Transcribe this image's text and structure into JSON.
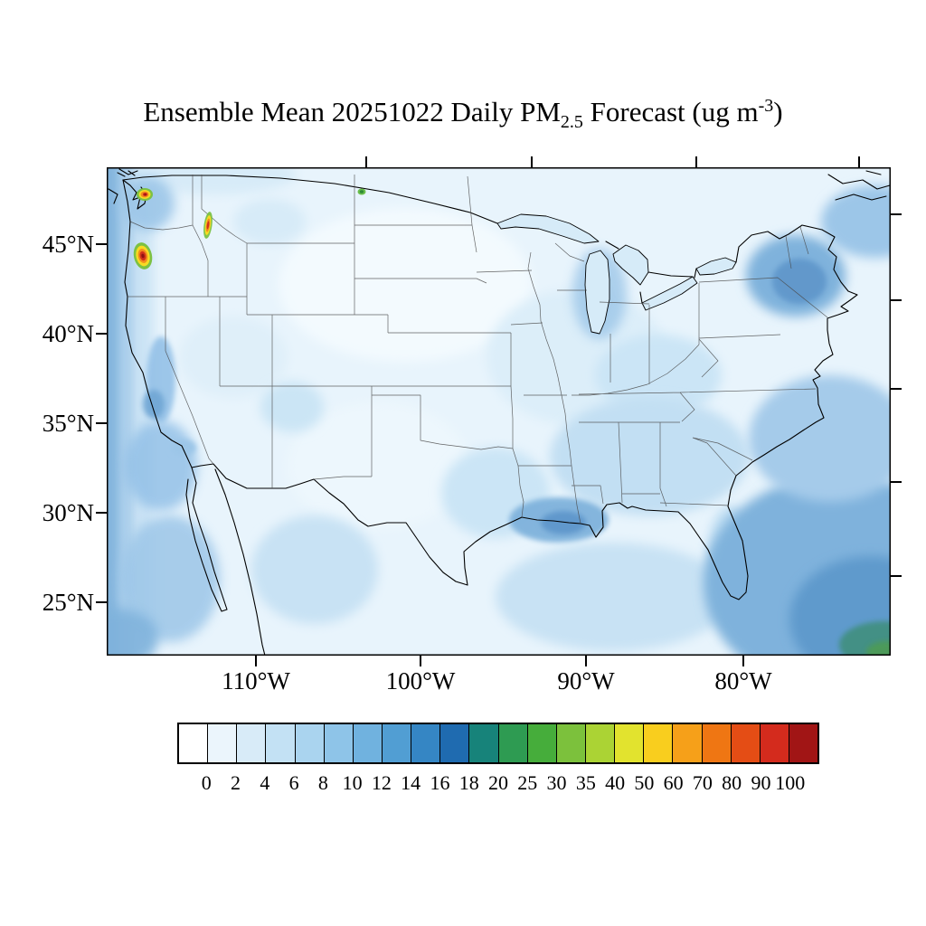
{
  "title": {
    "prefix": "Ensemble Mean 20251022 Daily PM",
    "subscript": "2.5",
    "middle": " Forecast (ug m",
    "superscript": "-3",
    "suffix": ")"
  },
  "map": {
    "y_axis_labels": [
      "45°N",
      "40°N",
      "35°N",
      "30°N",
      "25°N"
    ],
    "x_axis_labels": [
      "110°W",
      "100°W",
      "90°W",
      "80°W"
    ]
  },
  "colorbar": {
    "tick_labels": [
      "0",
      "2",
      "4",
      "6",
      "8",
      "10",
      "12",
      "14",
      "16",
      "18",
      "20",
      "25",
      "30",
      "35",
      "40",
      "50",
      "60",
      "70",
      "80",
      "90",
      "100"
    ],
    "colors": [
      "#FFFFFF",
      "#EBF5FC",
      "#D8EBF8",
      "#C3E1F4",
      "#AAD4EF",
      "#8EC4E8",
      "#70B2DF",
      "#519ED3",
      "#3586C4",
      "#1F6BB0",
      "#17837A",
      "#2E9B52",
      "#46AD3B",
      "#7CC13C",
      "#ABD334",
      "#E2E32E",
      "#F9CE1E",
      "#F6A019",
      "#EF7613",
      "#E44D15",
      "#D42B1D",
      "#A11515"
    ]
  },
  "chart_data": {
    "type": "heatmap",
    "title": "Ensemble Mean 20251022 Daily PM2.5 Forecast (ug m-3)",
    "region": "Continental United States with state borders",
    "x_ticks": [
      "110°W",
      "100°W",
      "90°W",
      "80°W"
    ],
    "y_ticks": [
      "45°N",
      "40°N",
      "35°N",
      "30°N",
      "25°N"
    ],
    "colorbar_levels": [
      0,
      2,
      4,
      6,
      8,
      10,
      12,
      14,
      16,
      18,
      20,
      25,
      30,
      35,
      40,
      50,
      60,
      70,
      80,
      90,
      100
    ],
    "units": "ug m-3",
    "field_summary": "Mostly 0-8 ug/m3 over CONUS; darker blue (6-12) along Pacific offshore band, New England, Louisiana gulf coast and southeast Atlantic; red/orange maxima exceeding 40-100 over western Washington (Puget Sound) and western Oregon (Willamette Valley) plus a narrow plume near the Washington-Idaho border; small green spot (12-16) near the Montana-North Dakota border and teal-green patch in the far southeast ocean corner"
  }
}
